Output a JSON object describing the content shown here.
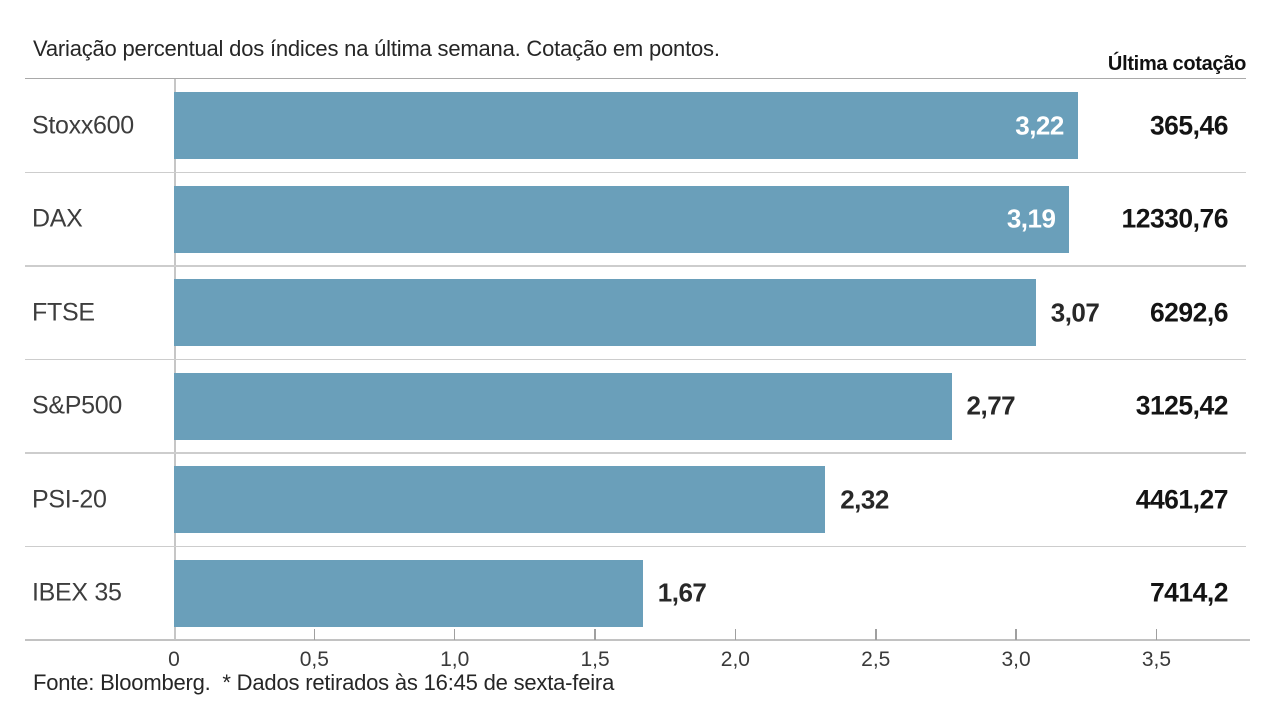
{
  "title": "Variação percentual dos índices na última semana. Cotação em pontos.",
  "column_header": "Última cotação",
  "footer": "Fonte: Bloomberg.  * Dados retirados às 16:45 de sexta-feira",
  "chart_data": {
    "type": "bar",
    "orientation": "horizontal",
    "title": "Variação percentual dos índices na última semana. Cotação em pontos.",
    "categories": [
      "Stoxx600",
      "DAX",
      "FTSE",
      "S&P500",
      "PSI-20",
      "IBEX 35"
    ],
    "series": [
      {
        "name": "Variação percentual na última semana (%)",
        "values": [
          3.22,
          3.19,
          3.07,
          2.77,
          2.32,
          1.67
        ],
        "value_labels": [
          "3,22",
          "3,19",
          "3,07",
          "2,77",
          "2,32",
          "1,67"
        ],
        "value_label_position": [
          "inside",
          "inside",
          "outside",
          "outside",
          "outside",
          "outside"
        ]
      },
      {
        "name": "Última cotação (pontos)",
        "value_labels": [
          "365,46",
          "12330,76",
          "6292,6",
          "3125,42",
          "4461,27",
          "7414,2"
        ],
        "values": [
          365.46,
          12330.76,
          6292.6,
          3125.42,
          4461.27,
          7414.2
        ]
      }
    ],
    "x_ticks": {
      "labels": [
        "0",
        "0,5",
        "1,0",
        "1,5",
        "2,0",
        "2,5",
        "3,0",
        "3,5"
      ],
      "values": [
        0,
        0.5,
        1,
        1.5,
        2,
        2.5,
        3,
        3.5
      ]
    },
    "xlim": [
      0,
      3.82
    ],
    "bar_color": "#6A9FBA",
    "grid": "row-separator-lines",
    "legend": "none",
    "source": "Fonte: Bloomberg.  * Dados retirados às 16:45 de sexta-feira"
  }
}
